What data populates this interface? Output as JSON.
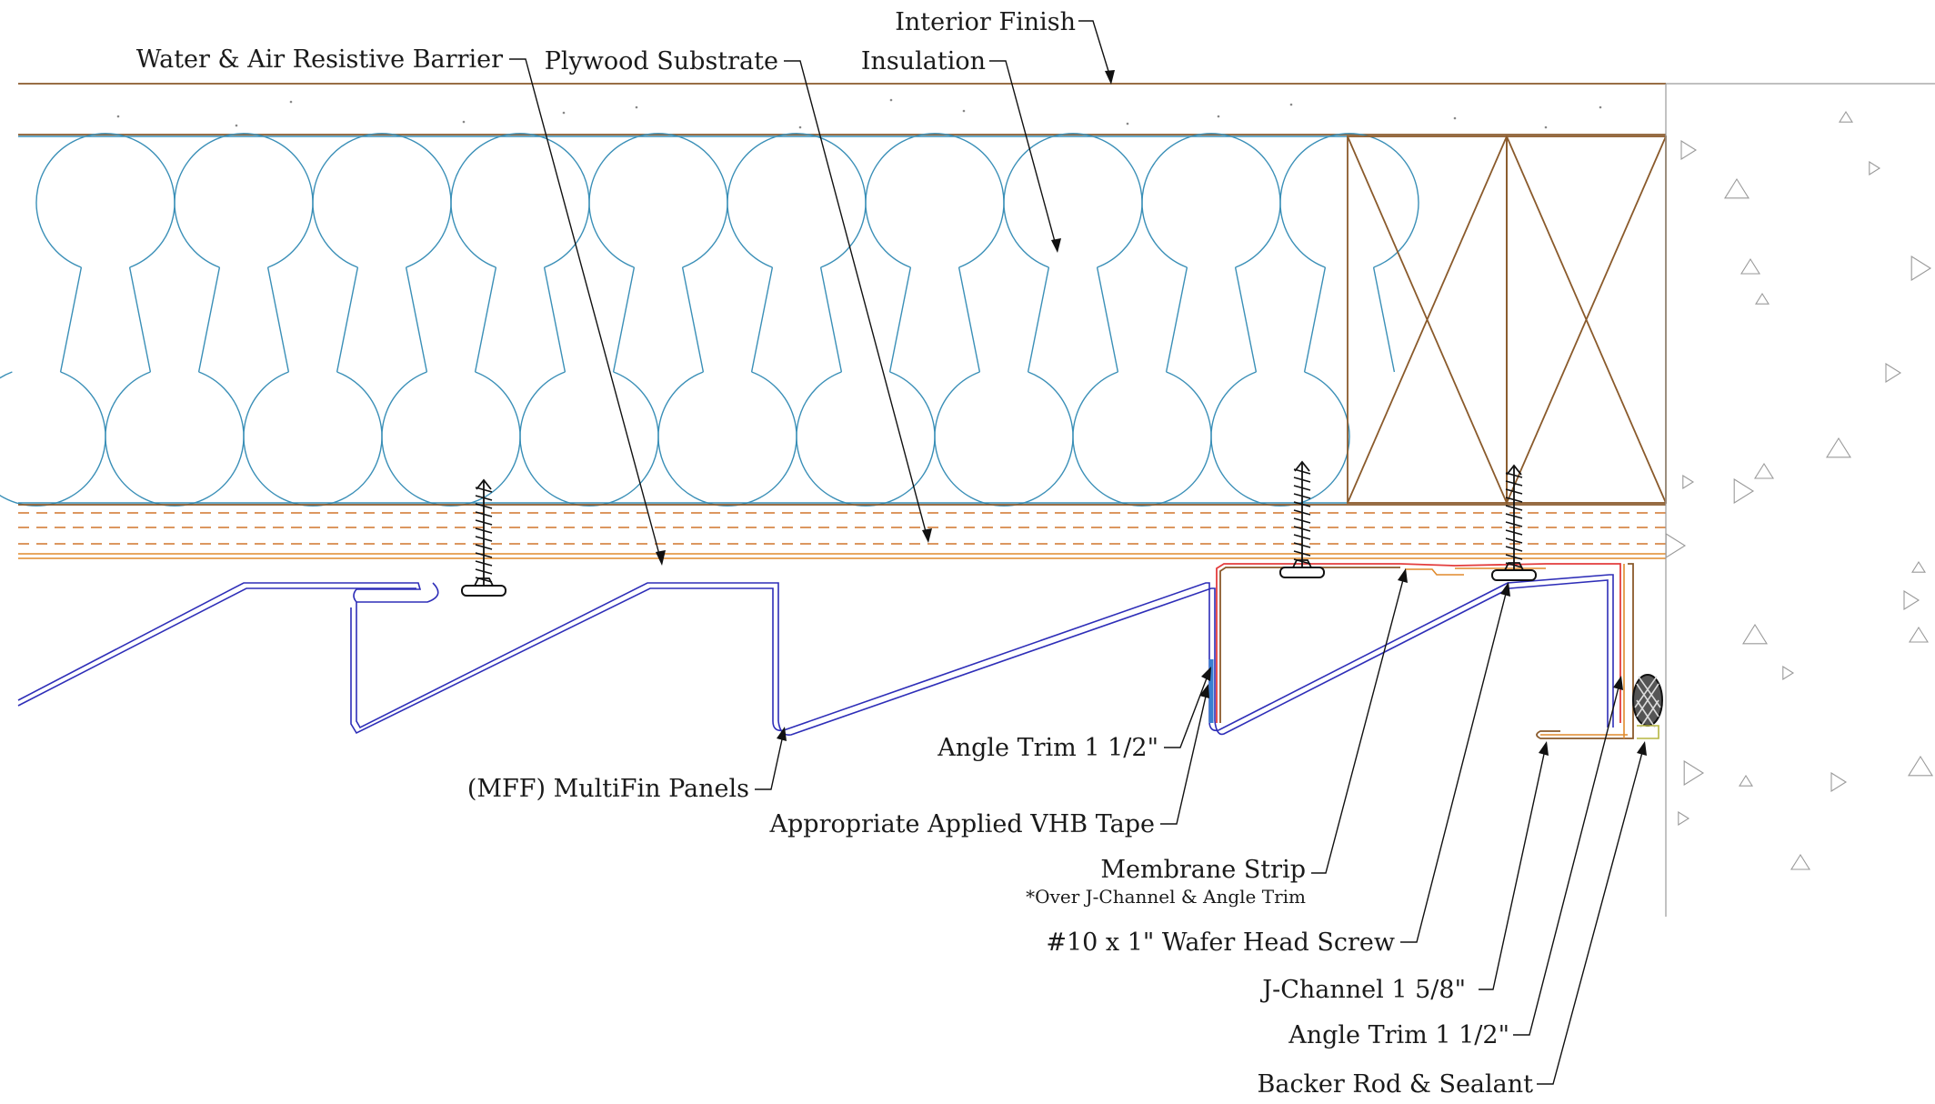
{
  "labels": {
    "interior_finish": "Interior Finish",
    "water_air_barrier": "Water & Air Resistive Barrier",
    "plywood_substrate": "Plywood Substrate",
    "insulation": "Insulation",
    "angle_trim_left": "Angle Trim 1 1/2\"",
    "multifin_panels": "(MFF) MultiFin Panels",
    "vhb_tape": "Appropriate Applied VHB Tape",
    "membrane_strip": "Membrane Strip",
    "membrane_strip_note": "*Over J-Channel & Angle Trim",
    "wafer_screw": "#10 x 1\" Wafer Head Screw",
    "j_channel": "J-Channel 1 5/8\"",
    "angle_trim_right": "Angle Trim 1 1/2\"",
    "backer_rod": "Backer Rod & Sealant"
  },
  "colors": {
    "insulation": "#3a8fb7",
    "blocking": "#8a5a2b",
    "panel": "#2e2eb8",
    "wrb": "#e08a2c",
    "membrane": "#e33d3d",
    "concrete": "#9a9a9a",
    "text": "#1a1a1a"
  }
}
